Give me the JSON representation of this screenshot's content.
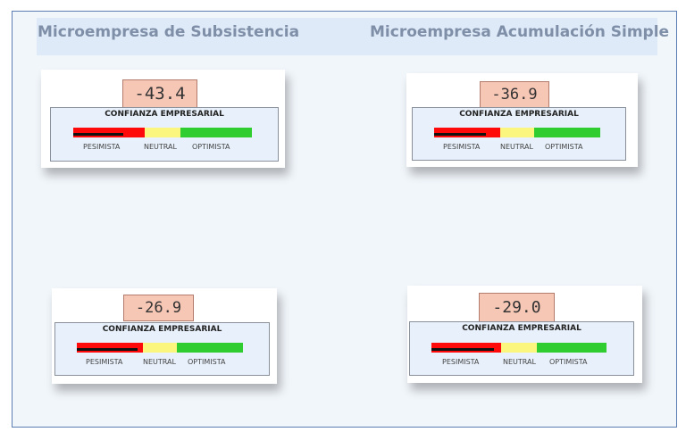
{
  "headers": {
    "left": "Microempresa de Subsistencia",
    "right": "Microempresa Acumulación Simple"
  },
  "cards": [
    {
      "value": "-43.4",
      "title": "CONFIANZA EMPRESARIAL",
      "labels": [
        "PESIMISTA",
        "NEUTRAL",
        "OPTIMISTA"
      ]
    },
    {
      "value": "-36.9",
      "title": "CONFIANZA EMPRESARIAL",
      "labels": [
        "PESIMISTA",
        "NEUTRAL",
        "OPTIMISTA"
      ]
    },
    {
      "value": "-26.9",
      "title": "CONFIANZA EMPRESARIAL",
      "labels": [
        "PESIMISTA",
        "NEUTRAL",
        "OPTIMISTA"
      ]
    },
    {
      "value": "-29.0",
      "title": "CONFIANZA EMPRESARIAL",
      "labels": [
        "PESIMISTA",
        "NEUTRAL",
        "OPTIMISTA"
      ]
    }
  ],
  "colors": {
    "pesimista": "#ff0a0a",
    "neutral": "#fbf67e",
    "optimista": "#2fcd2f",
    "value_box": "#f7c7b6"
  }
}
